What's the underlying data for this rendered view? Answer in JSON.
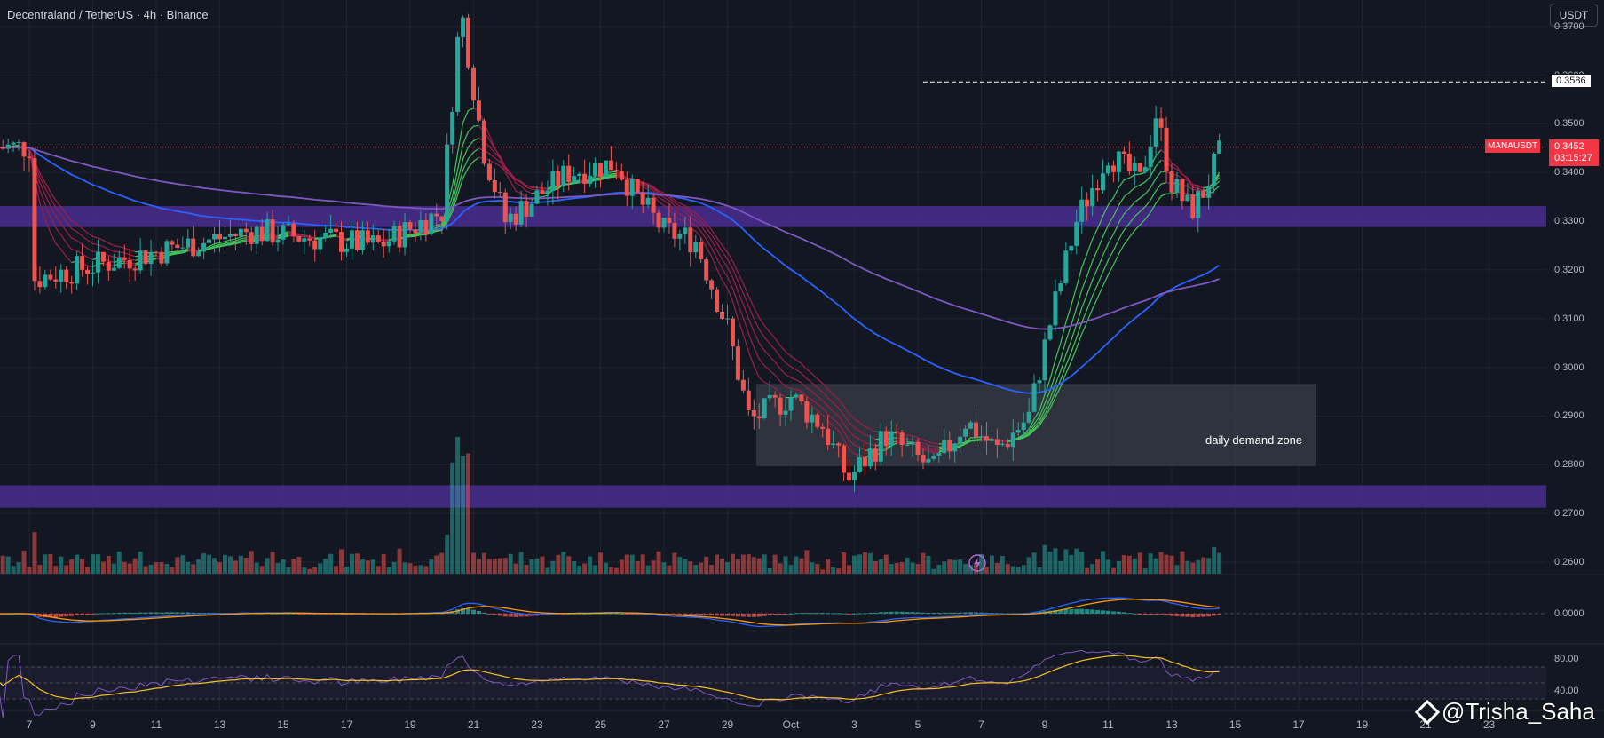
{
  "header": {
    "title": "Decentraland / TetherUS · 4h · Binance",
    "currency": "USDT"
  },
  "colors": {
    "background": "#131722",
    "up": "#26a69a",
    "down": "#ef5350",
    "zone": "#4a2d8f",
    "ema_fast_bull": "#43c55a",
    "ema_fast_bear": "#9c1f4a",
    "ema_mid": "#2962ff",
    "ema_slow": "#7e57c2",
    "macd": "#2962ff",
    "signal": "#ff9800",
    "rsi": "#7e57c2",
    "rsi_ma": "#f5c022"
  },
  "price_tags": {
    "high": "0.3586",
    "symbol": "MANAUSDT",
    "last": "0.3452",
    "countdown": "03:15:27"
  },
  "annotations": {
    "zone_label": "daily demand zone"
  },
  "watermark": "@Trisha_Saha",
  "chart_data": {
    "type": "candlestick",
    "y_ticks": [
      "0.3700",
      "0.3600",
      "0.3500",
      "0.3400",
      "0.3300",
      "0.3200",
      "0.3100",
      "0.3000",
      "0.2900",
      "0.2800",
      "0.2700",
      "0.2600"
    ],
    "x_ticks": [
      "7",
      "9",
      "11",
      "13",
      "15",
      "17",
      "19",
      "21",
      "23",
      "25",
      "27",
      "29",
      "Oct",
      "3",
      "5",
      "7",
      "9",
      "11",
      "13",
      "15",
      "17",
      "19",
      "21",
      "23"
    ],
    "ylim": [
      0.258,
      0.3745
    ],
    "supply_zones": [
      {
        "from": 0.3288,
        "to": 0.3331
      },
      {
        "from": 0.2712,
        "to": 0.2758
      }
    ],
    "demand_zone": {
      "from": 0.2797,
      "to": 0.2966,
      "start": "Sep 30",
      "end": "Oct 18"
    },
    "high_line": 0.3586,
    "last_price": 0.3452,
    "macd_ticks": [
      "0.0000"
    ],
    "rsi_ticks": [
      "80.00",
      "40.00"
    ],
    "price_path": [
      [
        0,
        0.318
      ],
      [
        7,
        0.328
      ],
      [
        11,
        0.325
      ],
      [
        13,
        0.332
      ],
      [
        13.6,
        0.374
      ],
      [
        14.3,
        0.345
      ],
      [
        15,
        0.33
      ],
      [
        17,
        0.34
      ],
      [
        18.5,
        0.342
      ],
      [
        19,
        0.336
      ],
      [
        20,
        0.328
      ],
      [
        21,
        0.326
      ],
      [
        22,
        0.308
      ],
      [
        22.7,
        0.289
      ],
      [
        24,
        0.294
      ],
      [
        25,
        0.288
      ],
      [
        25.8,
        0.277
      ],
      [
        27,
        0.286
      ],
      [
        28.5,
        0.279
      ],
      [
        29.5,
        0.289
      ],
      [
        30.5,
        0.283
      ],
      [
        31.5,
        0.29
      ],
      [
        32.2,
        0.31
      ],
      [
        33,
        0.33
      ],
      [
        34,
        0.344
      ],
      [
        35,
        0.338
      ],
      [
        35.5,
        0.352
      ],
      [
        36,
        0.338
      ],
      [
        36.6,
        0.332
      ],
      [
        37,
        0.336
      ],
      [
        37.6,
        0.3452
      ]
    ]
  }
}
